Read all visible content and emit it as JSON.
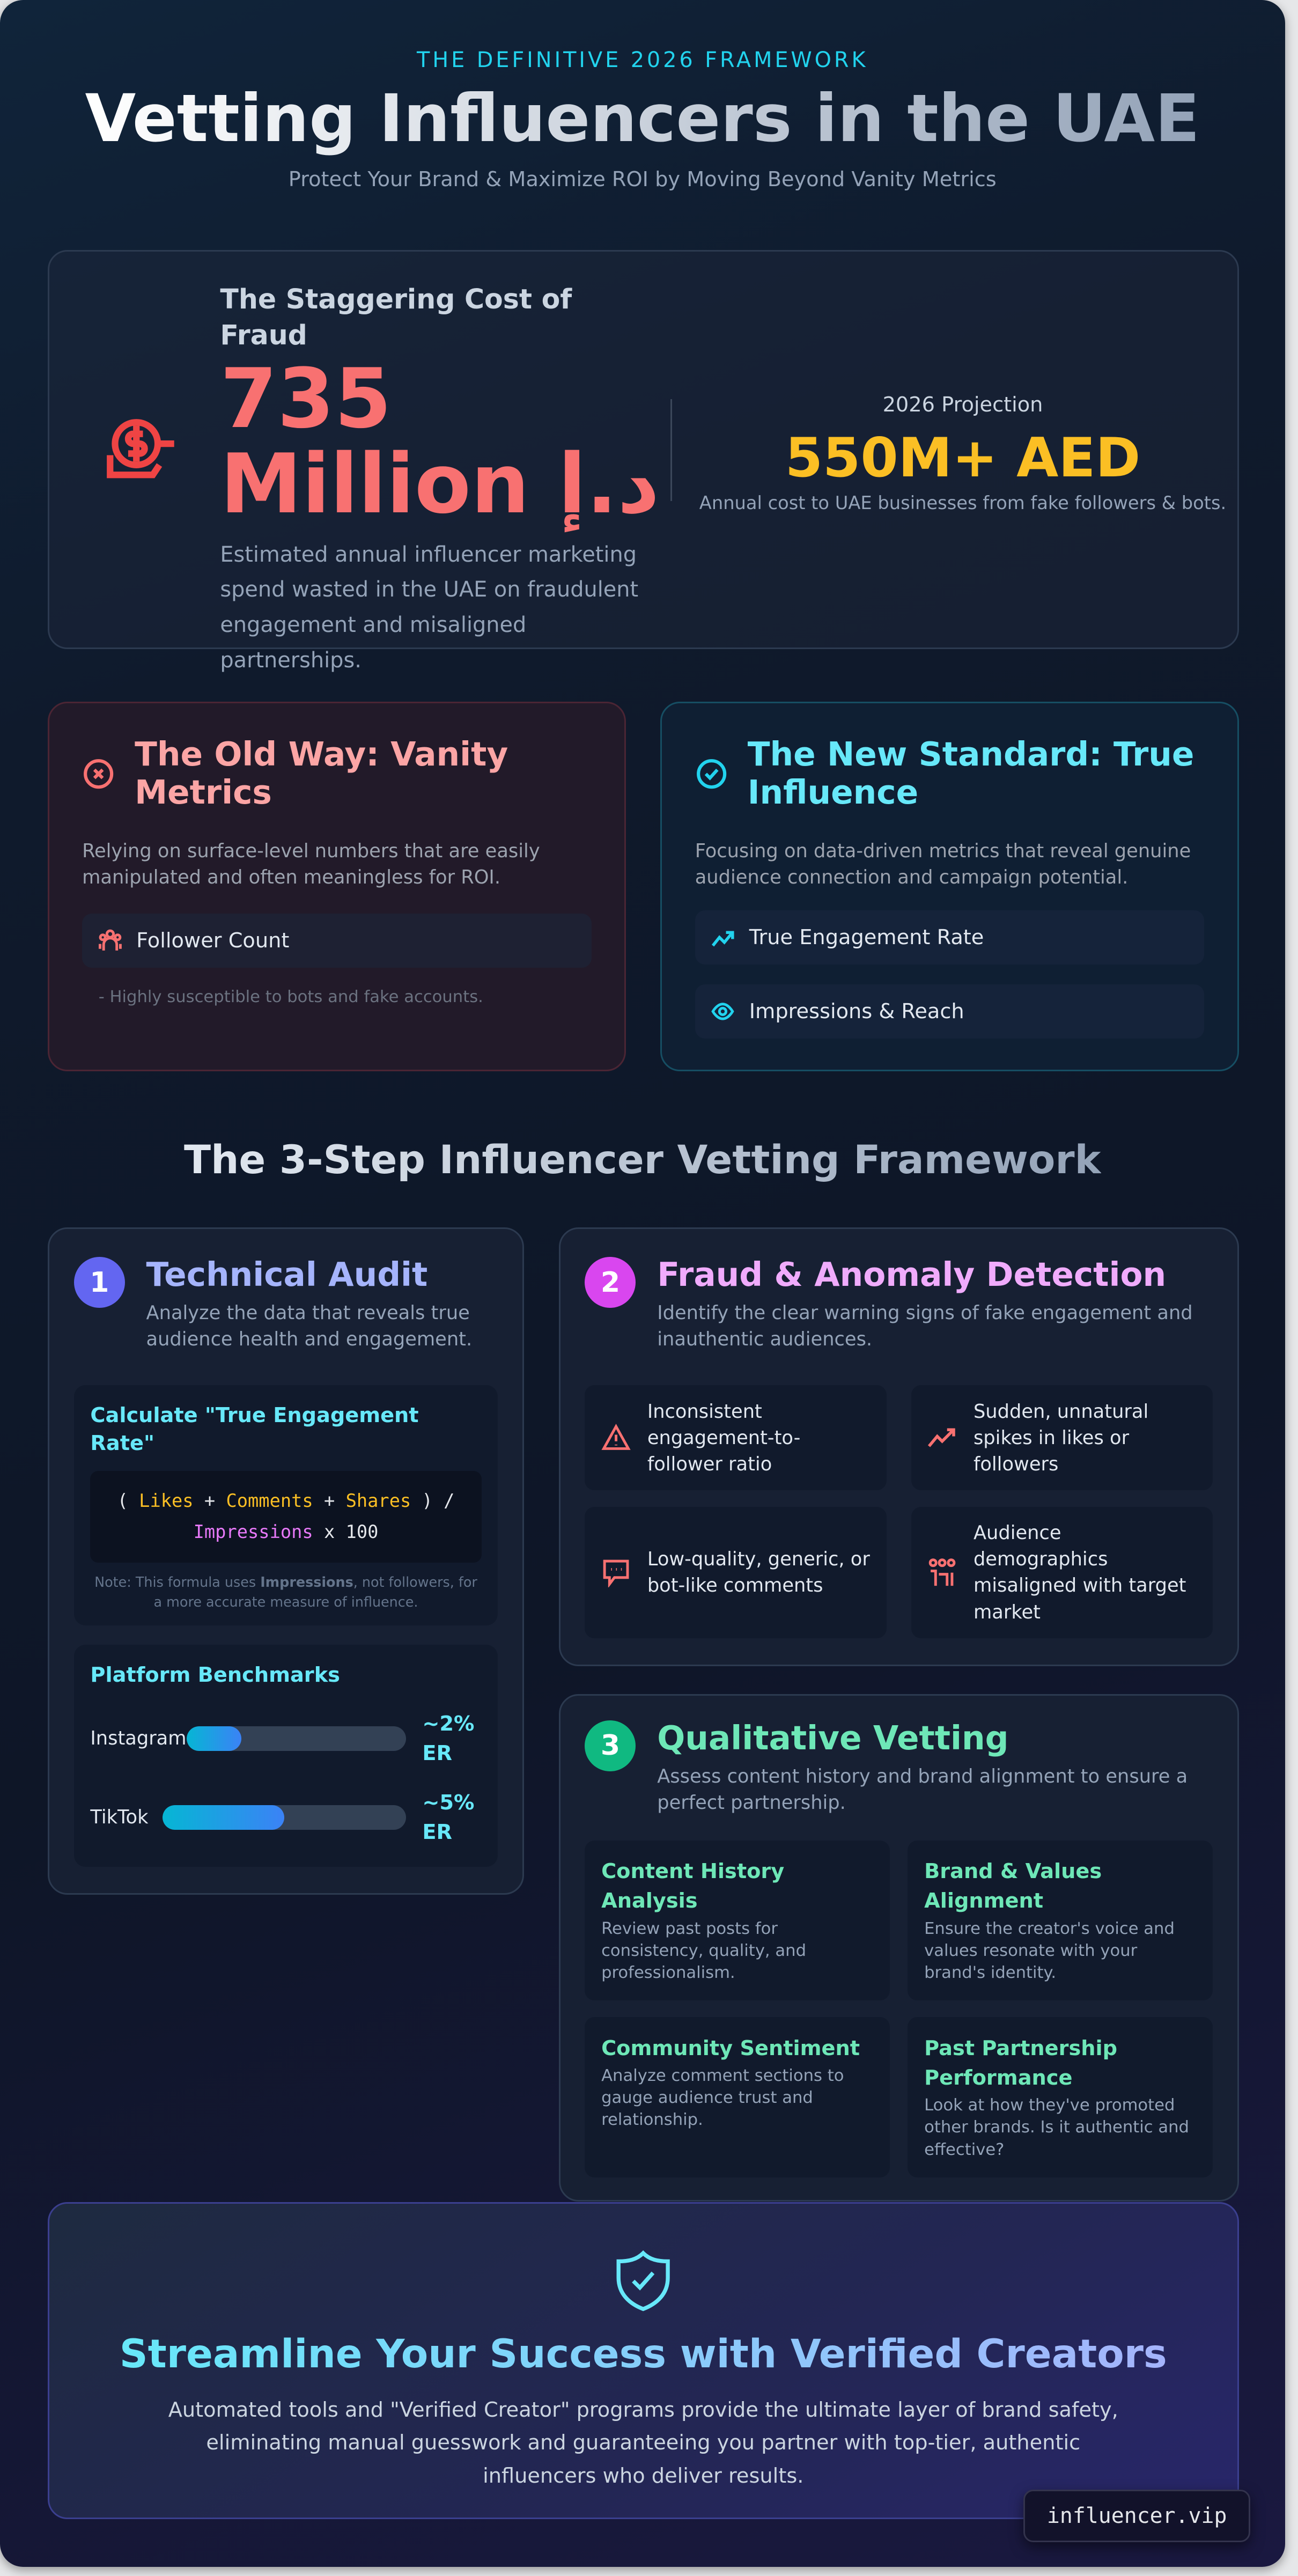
{
  "header": {
    "kicker": "THE DEFINITIVE 2026 FRAMEWORK",
    "title": "Vetting Influencers in the UAE",
    "subtitle": "Protect Your Brand & Maximize ROI by Moving Beyond Vanity Metrics"
  },
  "cost": {
    "icon": "money-fraud-icon",
    "heading": "The Staggering Cost of Fraud",
    "amount": "735 Million د.إ",
    "description": "Estimated annual influencer marketing spend wasted in the UAE on fraudulent engagement and misaligned partnerships.",
    "projection_label": "2026 Projection",
    "projection_value": "550M+ AED",
    "projection_sub": "Annual cost to UAE businesses from fake followers & bots."
  },
  "old_way": {
    "title": "The Old Way: Vanity Metrics",
    "description": "Relying on surface-level numbers that are easily manipulated and often meaningless for ROI.",
    "items": [
      {
        "label": "Follower Count",
        "icon": "users-icon"
      }
    ],
    "note": "- Highly susceptible to bots and fake accounts."
  },
  "new_way": {
    "title": "The New Standard: True Influence",
    "description": "Focusing on data-driven metrics that reveal genuine audience connection and campaign potential.",
    "items": [
      {
        "label": "True Engagement Rate",
        "icon": "trending-up-icon"
      },
      {
        "label": "Impressions & Reach",
        "icon": "eye-icon"
      }
    ]
  },
  "framework": {
    "title": "The 3-Step Influencer Vetting Framework",
    "step1": {
      "number": "1",
      "title": "Technical Audit",
      "description": "Analyze the data that reveals true audience health and engagement.",
      "calc_title": "Calculate \"True Engagement Rate\"",
      "formula": {
        "open": "( ",
        "likes": "Likes",
        "plus1": " + ",
        "comments": "Comments",
        "plus2": " + ",
        "shares": "Shares",
        "close": " ) /",
        "impressions": "Impressions",
        "times": " x 100"
      },
      "note_pre": "Note: This formula uses ",
      "note_bold": "Impressions",
      "note_post": ", not followers, for a more accurate measure of influence.",
      "bench_title": "Platform Benchmarks",
      "benchmarks": [
        {
          "platform": "Instagram",
          "value": "~2% ER",
          "fill_percent": 25
        },
        {
          "platform": "TikTok",
          "value": "~5% ER",
          "fill_percent": 50
        }
      ]
    },
    "step2": {
      "number": "2",
      "title": "Fraud & Anomaly Detection",
      "description": "Identify the clear warning signs of fake engagement and inauthentic audiences.",
      "flags": [
        {
          "text": "Inconsistent engagement-to-follower ratio",
          "icon": "warning-icon"
        },
        {
          "text": "Sudden, unnatural spikes in likes or followers",
          "icon": "spike-chart-icon"
        },
        {
          "text": "Low-quality, generic, or bot-like comments",
          "icon": "comment-icon"
        },
        {
          "text": "Audience demographics misaligned with target market",
          "icon": "demographics-icon"
        }
      ]
    },
    "step3": {
      "number": "3",
      "title": "Qualitative Vetting",
      "description": "Assess content history and brand alignment to ensure a perfect partnership.",
      "items": [
        {
          "title": "Content History Analysis",
          "text": "Review past posts for consistency, quality, and professionalism."
        },
        {
          "title": "Brand & Values Alignment",
          "text": "Ensure the creator's voice and values resonate with your brand's identity."
        },
        {
          "title": "Community Sentiment",
          "text": "Analyze comment sections to gauge audience trust and relationship."
        },
        {
          "title": "Past Partnership Performance",
          "text": "Look at how they've promoted other brands. Is it authentic and effective?"
        }
      ]
    }
  },
  "cta": {
    "icon": "shield-check-icon",
    "title": "Streamline Your Success with Verified Creators",
    "description": "Automated tools and \"Verified Creator\" programs provide the ultimate layer of brand safety, eliminating manual guesswork and guaranteeing you partner with top-tier, authentic influencers who deliver results."
  },
  "badge": "influencer.vip",
  "colors": {
    "accent_cyan": "#22d3ee",
    "fraud_red": "#f87171",
    "projection_amber": "#fbbf24",
    "step1": "#6366f1",
    "step2": "#d946ef",
    "step3": "#10b981"
  }
}
